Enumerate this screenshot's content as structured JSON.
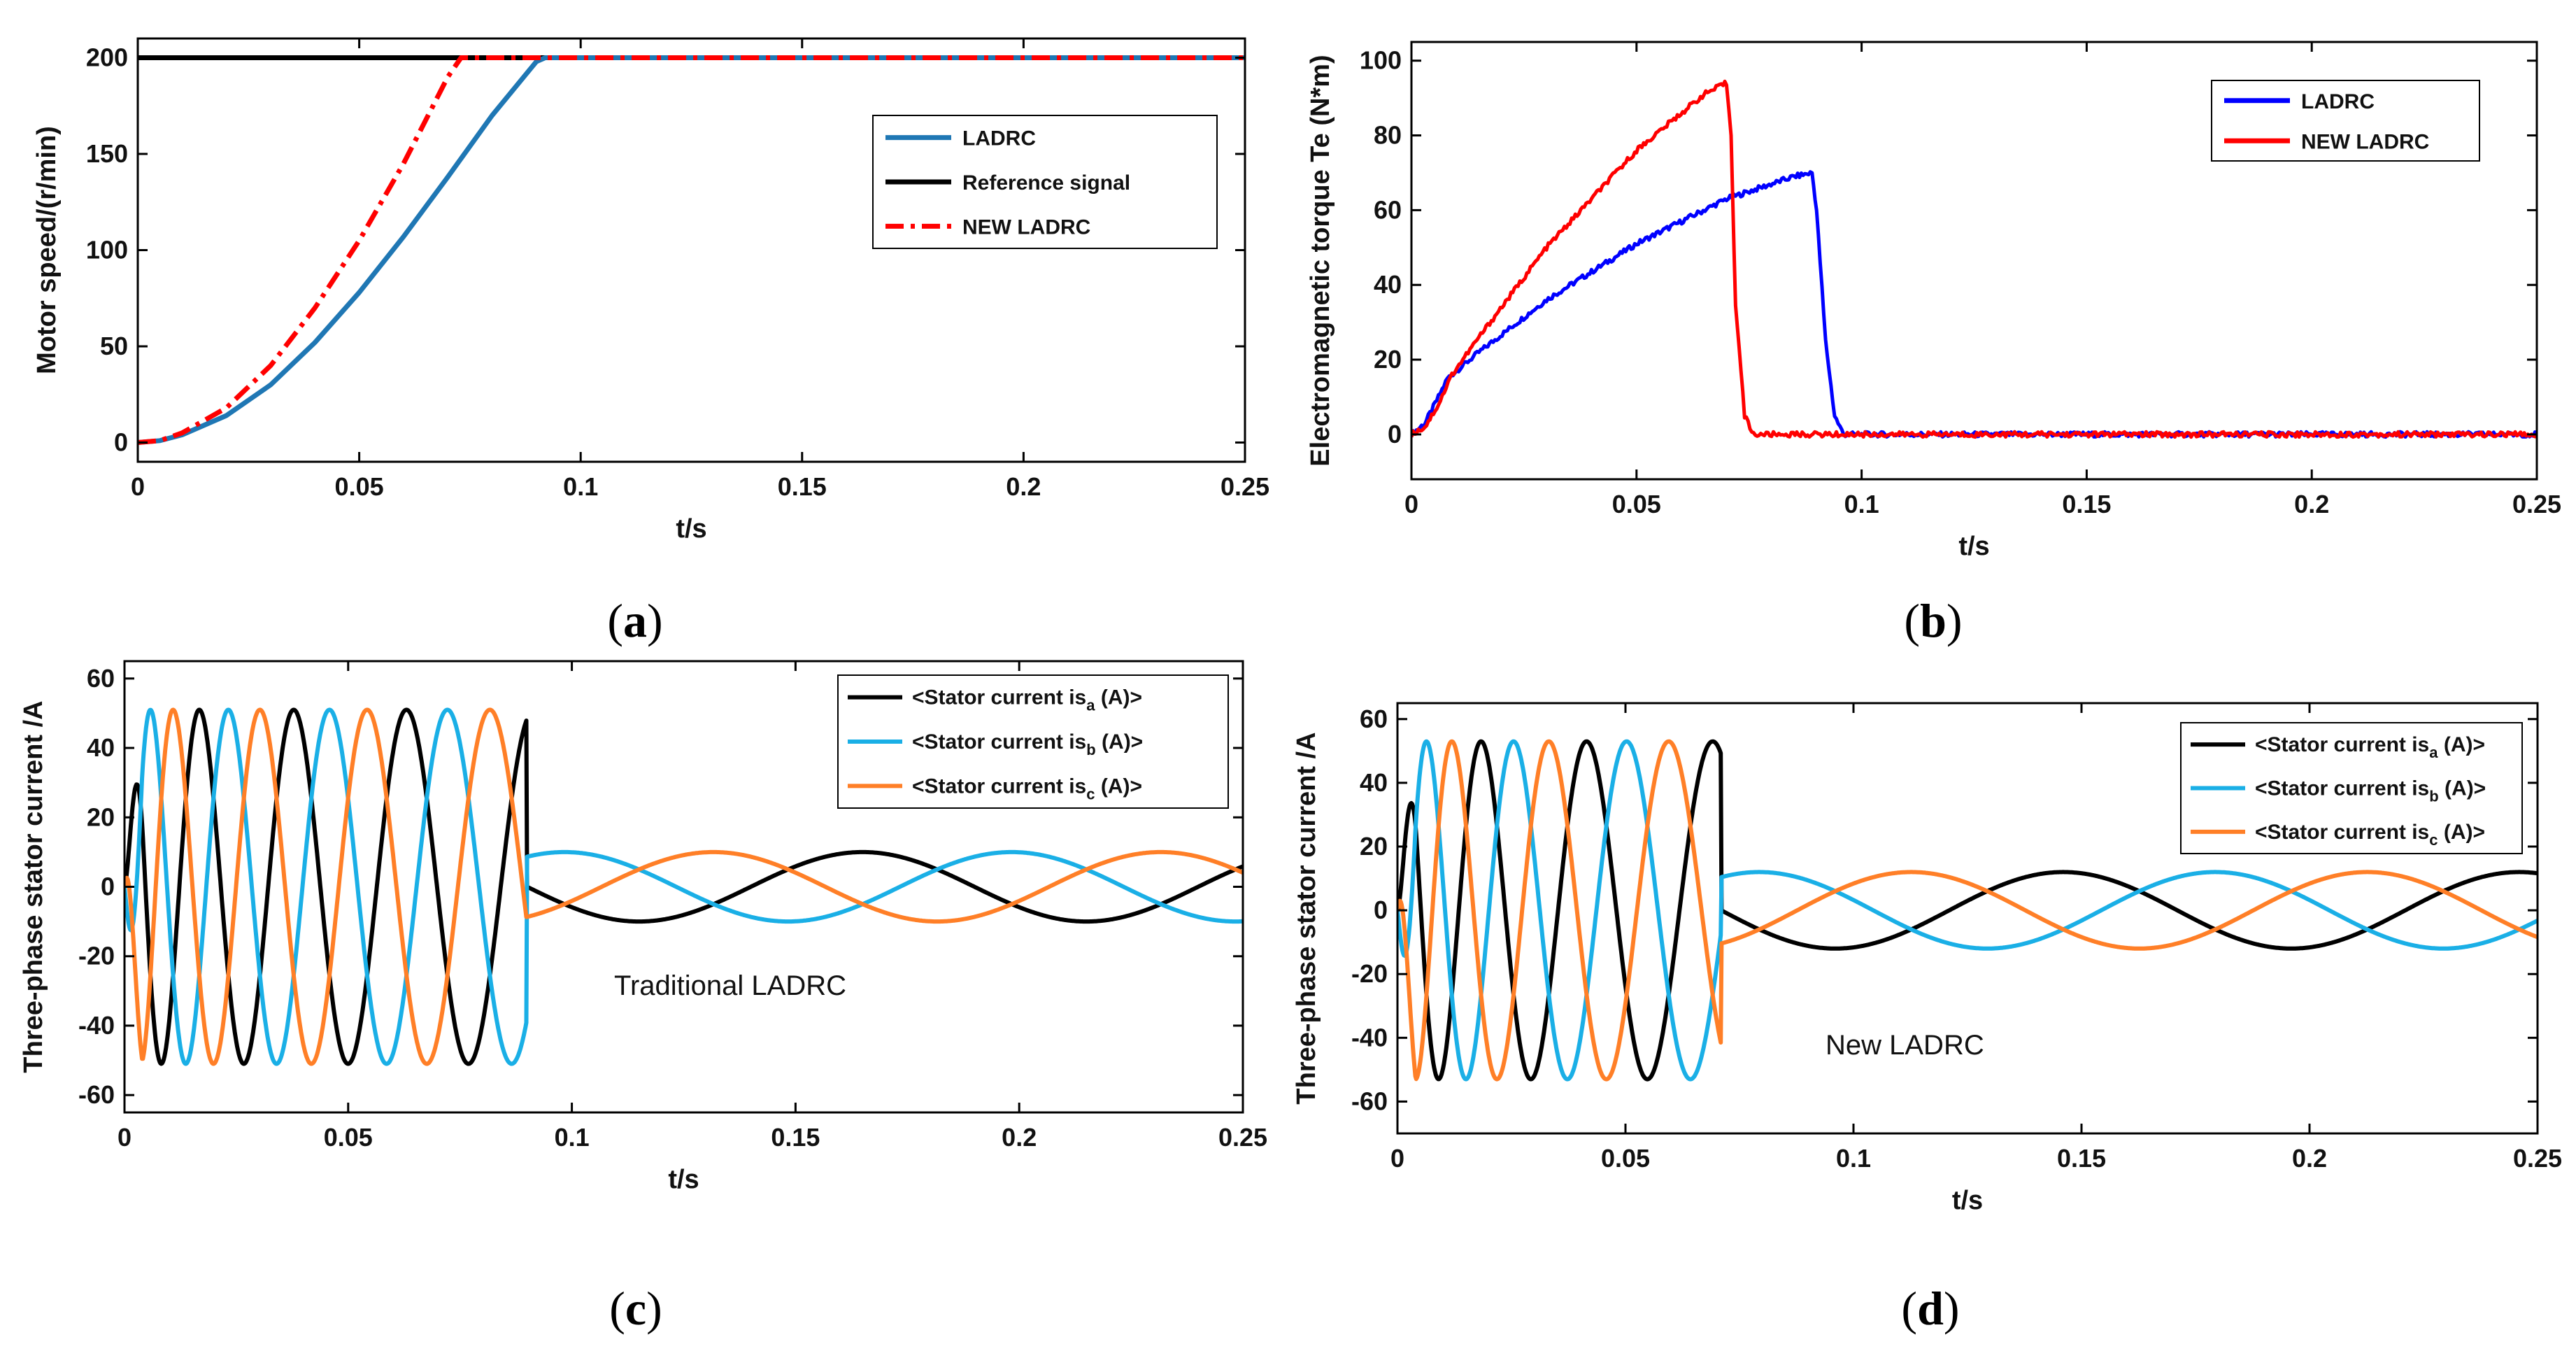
{
  "chart_data": [
    {
      "id": "a",
      "type": "line",
      "caption": "a",
      "xlabel": "t/s",
      "ylabel": "Motor speed/(r/min)",
      "xlim": [
        0,
        0.25
      ],
      "ylim": [
        -10,
        210
      ],
      "xticks": [
        0,
        0.05,
        0.1,
        0.15,
        0.2,
        0.25
      ],
      "xtick_labels": [
        "0",
        "0.05",
        "0.1",
        "0.15",
        "0.2",
        "0.25"
      ],
      "yticks": [
        0,
        50,
        100,
        150,
        200
      ],
      "ytick_labels": [
        "0",
        "50",
        "100",
        "150",
        "200"
      ],
      "legend_position": "upper-right",
      "series": [
        {
          "name": "LADRC",
          "color": "#1f77b4",
          "dash": "solid",
          "x": [
            0,
            0.005,
            0.01,
            0.02,
            0.03,
            0.04,
            0.05,
            0.06,
            0.07,
            0.08,
            0.09,
            0.092,
            0.25
          ],
          "values": [
            0,
            1,
            4,
            14,
            30,
            52,
            78,
            107,
            138,
            170,
            198,
            200,
            200
          ]
        },
        {
          "name": "Reference signal",
          "color": "#000000",
          "dash": "solid",
          "x": [
            0,
            0.25
          ],
          "values": [
            200,
            200
          ]
        },
        {
          "name": "NEW LADRC",
          "color": "#ff0000",
          "dash": "dashdot",
          "x": [
            0,
            0.005,
            0.01,
            0.02,
            0.03,
            0.04,
            0.05,
            0.06,
            0.07,
            0.073,
            0.25
          ],
          "values": [
            0,
            1,
            5,
            18,
            40,
            70,
            105,
            145,
            190,
            200,
            200
          ]
        }
      ]
    },
    {
      "id": "b",
      "type": "line",
      "caption": "b",
      "xlabel": "t/s",
      "ylabel": "Electromagnetic torque Te (N*m)",
      "xlim": [
        0,
        0.25
      ],
      "ylim": [
        -12,
        105
      ],
      "xticks": [
        0,
        0.05,
        0.1,
        0.15,
        0.2,
        0.25
      ],
      "xtick_labels": [
        "0",
        "0.05",
        "0.1",
        "0.15",
        "0.2",
        "0.25"
      ],
      "yticks": [
        0,
        20,
        40,
        60,
        80,
        100
      ],
      "ytick_labels": [
        "0",
        "20",
        "40",
        "60",
        "80",
        "100"
      ],
      "legend_position": "upper-right",
      "series": [
        {
          "name": "LADRC",
          "color": "#0000ff",
          "dash": "solid",
          "x": [
            0,
            0.003,
            0.006,
            0.008,
            0.015,
            0.03,
            0.05,
            0.07,
            0.085,
            0.089,
            0.09,
            0.092,
            0.094,
            0.096,
            0.25
          ],
          "values": [
            0,
            3,
            10,
            15,
            22,
            36,
            51,
            63,
            69,
            70,
            60,
            25,
            5,
            0,
            0
          ]
        },
        {
          "name": "NEW LADRC",
          "color": "#ff0000",
          "dash": "solid",
          "x": [
            0,
            0.003,
            0.006,
            0.009,
            0.015,
            0.03,
            0.05,
            0.065,
            0.07,
            0.071,
            0.072,
            0.074,
            0.076,
            0.25
          ],
          "values": [
            0,
            2,
            8,
            16,
            26,
            50,
            76,
            91,
            94,
            80,
            35,
            5,
            0,
            0
          ]
        }
      ]
    },
    {
      "id": "c",
      "type": "line",
      "caption": "c",
      "xlabel": "t/s",
      "ylabel": "Three-phase stator current /A",
      "annotation": "Traditional LADRC",
      "xlim": [
        0,
        0.25
      ],
      "ylim": [
        -65,
        65
      ],
      "xticks": [
        0,
        0.05,
        0.1,
        0.15,
        0.2,
        0.25
      ],
      "xtick_labels": [
        "0",
        "0.05",
        "0.1",
        "0.15",
        "0.2",
        "0.25"
      ],
      "yticks": [
        -60,
        -40,
        -20,
        0,
        20,
        40,
        60
      ],
      "ytick_labels": [
        "-60",
        "-40",
        "-20",
        "0",
        "20",
        "40",
        "60"
      ],
      "legend_position": "upper-right",
      "legend_entries": [
        {
          "prefix": "<Stator current is",
          "sub": "a",
          "suffix": " (A)>"
        },
        {
          "prefix": "<Stator current is",
          "sub": "b",
          "suffix": " (A)>"
        },
        {
          "prefix": "<Stator current is",
          "sub": "c",
          "suffix": " (A)>"
        }
      ],
      "series": [
        {
          "name": "Stator current isa (A)",
          "color": "#000000",
          "amp_start": 51,
          "amp_end": 10,
          "t_switch": 0.09,
          "start_phase": 0
        },
        {
          "name": "Stator current isb (A)",
          "color": "#1aafe6",
          "amp_start": 51,
          "amp_end": 10,
          "t_switch": 0.09,
          "start_phase": -2.094
        },
        {
          "name": "Stator current isc (A)",
          "color": "#ff7f27",
          "amp_start": 51,
          "amp_end": 10,
          "t_switch": 0.09,
          "start_phase": 2.094
        }
      ]
    },
    {
      "id": "d",
      "type": "line",
      "caption": "d",
      "xlabel": "t/s",
      "ylabel": "Three-phase stator current /A",
      "annotation": "New LADRC",
      "xlim": [
        0,
        0.25
      ],
      "ylim": [
        -70,
        65
      ],
      "xticks": [
        0,
        0.05,
        0.1,
        0.15,
        0.2,
        0.25
      ],
      "xtick_labels": [
        "0",
        "0.05",
        "0.1",
        "0.15",
        "0.2",
        "0.25"
      ],
      "yticks": [
        -60,
        -40,
        -20,
        0,
        20,
        40,
        60
      ],
      "ytick_labels": [
        "-60",
        "-40",
        "-20",
        "0",
        "20",
        "40",
        "60"
      ],
      "legend_position": "upper-right",
      "legend_entries": [
        {
          "prefix": "<Stator current is",
          "sub": "a",
          "suffix": " (A)>"
        },
        {
          "prefix": "<Stator current is",
          "sub": "b",
          "suffix": " (A)>"
        },
        {
          "prefix": "<Stator current is",
          "sub": "c",
          "suffix": " (A)>"
        }
      ],
      "series": [
        {
          "name": "Stator current isa (A)",
          "color": "#000000",
          "amp_start": 53,
          "amp_end": 12,
          "t_switch": 0.071,
          "start_phase": 0
        },
        {
          "name": "Stator current isb (A)",
          "color": "#1aafe6",
          "amp_start": 53,
          "amp_end": 12,
          "t_switch": 0.071,
          "start_phase": -2.094
        },
        {
          "name": "Stator current isc (A)",
          "color": "#ff7f27",
          "amp_start": 53,
          "amp_end": 12,
          "t_switch": 0.071,
          "start_phase": 2.094
        }
      ]
    }
  ]
}
